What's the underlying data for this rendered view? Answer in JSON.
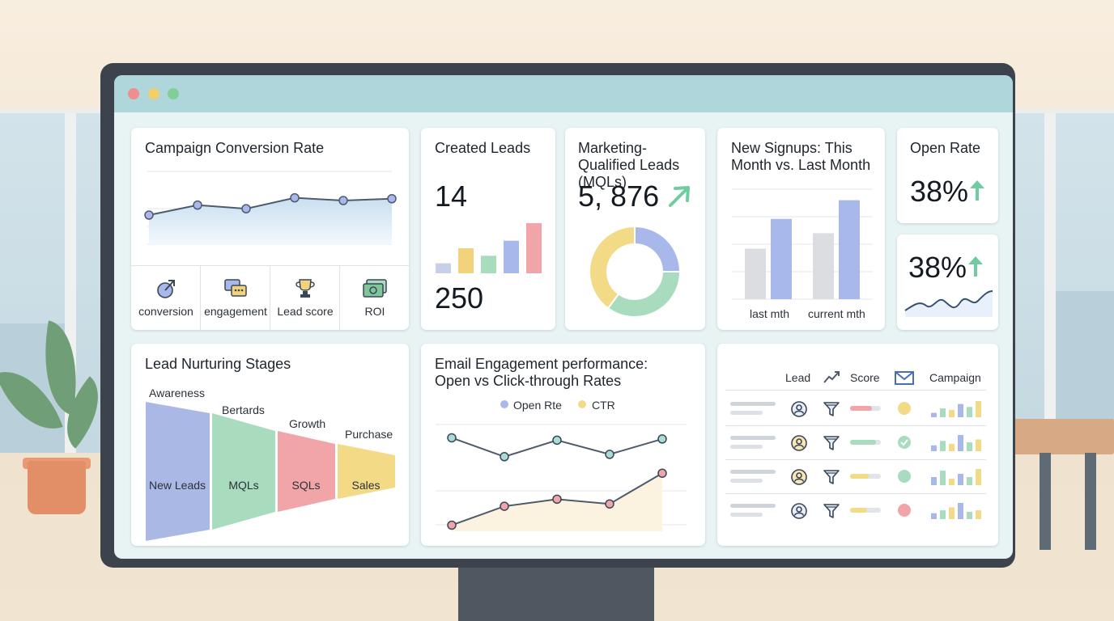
{
  "window": {
    "controls": [
      {
        "name": "close",
        "color": "#ee8e8e"
      },
      {
        "name": "minimize",
        "color": "#f2cf6a"
      },
      {
        "name": "maximize",
        "color": "#7fcf96"
      }
    ]
  },
  "campaign": {
    "title": "Campaign Conversion Rate",
    "chart_data": {
      "type": "line",
      "values": [
        3.2,
        4.3,
        3.9,
        5.1,
        4.8,
        5.0
      ],
      "ylim": [
        0,
        8
      ]
    },
    "metrics": [
      {
        "label": "conversion",
        "icon": "conversion-icon"
      },
      {
        "label": "engagement",
        "icon": "engagement-icon"
      },
      {
        "label": "Lead score",
        "icon": "trophy-icon"
      },
      {
        "label": "ROI",
        "icon": "money-icon"
      }
    ]
  },
  "created_leads": {
    "title": "Created Leads",
    "value": "14",
    "total": "250",
    "chart_data": {
      "type": "bar",
      "values": [
        2,
        5,
        3.5,
        6.5,
        10
      ],
      "colors": [
        "#c7d0e6",
        "#f3d27e",
        "#a9dcbf",
        "#a9b8ea",
        "#f1a5a8"
      ]
    }
  },
  "mqls": {
    "title": "Marketing-Qualified Leads (MQLs)",
    "value": "5, 876",
    "trend": "up",
    "chart_data": {
      "type": "pie",
      "values": [
        25,
        35,
        40
      ],
      "colors": [
        "#a9b8ea",
        "#a9dcbf",
        "#f3da86"
      ]
    }
  },
  "signups": {
    "title": "New Signups: This Month vs. Last Month",
    "groups": [
      "last mth",
      "current mth"
    ],
    "chart_data": {
      "type": "bar",
      "series": [
        {
          "values": [
            46,
            73
          ]
        },
        {
          "values": [
            60,
            90
          ]
        }
      ],
      "ylim": [
        0,
        100
      ],
      "colors": [
        "#dcdde1",
        "#a9b8ea"
      ]
    }
  },
  "open_rate": {
    "title": "Open Rate",
    "value": "38%"
  },
  "open_rate_2": {
    "value": "38%"
  },
  "stages": {
    "title": "Lead Nurturing Stages",
    "top_labels": [
      "Awareness",
      "Bertards",
      "Growth",
      "Purchase"
    ],
    "chart_data": {
      "type": "funnel",
      "categories": [
        "New Leads",
        "MQLs",
        "SQLs",
        "Sales"
      ],
      "colors": [
        "#aab8e6",
        "#a9dcbf",
        "#f1a5a8",
        "#f3da86"
      ]
    }
  },
  "email": {
    "title_line1": "Email Engagement performance:",
    "title_line2": "Open vs Click-through Rates",
    "legend": [
      {
        "label": "Open Rte",
        "color": "#a9b8ea"
      },
      {
        "label": "CTR",
        "color": "#f3da86"
      }
    ],
    "chart_data": {
      "type": "line",
      "x": [
        1,
        2,
        3,
        4,
        5
      ],
      "series": [
        {
          "name": "Open Rte",
          "values": [
            86,
            70,
            84,
            72,
            85
          ]
        },
        {
          "name": "CTR",
          "values": [
            12,
            28,
            34,
            30,
            56
          ]
        }
      ],
      "ylim": [
        0,
        100
      ]
    }
  },
  "table": {
    "columns": [
      {
        "label": "Lead",
        "icon": ""
      },
      {
        "label": "Score",
        "icon": "trend-icon"
      },
      {
        "label": "Campaign",
        "icon": "envelope-icon"
      }
    ],
    "rows": [
      {
        "score": 0.72,
        "score_color": "#f1a5a8",
        "status_color": "#f3da86",
        "status": "dot",
        "bars": [
          3,
          6,
          5,
          9,
          7,
          11
        ]
      },
      {
        "score": 0.85,
        "score_color": "#a9dcbf",
        "status_color": "#a9dcbf",
        "status": "check",
        "bars": [
          4,
          7,
          5,
          11,
          6,
          8
        ]
      },
      {
        "score": 0.6,
        "score_color": "#f3da86",
        "status_color": "#a9dcbf",
        "status": "dot",
        "bars": [
          5,
          9,
          4,
          7,
          5,
          10
        ]
      },
      {
        "score": 0.55,
        "score_color": "#f3da86",
        "status_color": "#f1a5a8",
        "status": "dot",
        "bars": [
          4,
          6,
          8,
          11,
          5,
          6
        ]
      }
    ]
  }
}
